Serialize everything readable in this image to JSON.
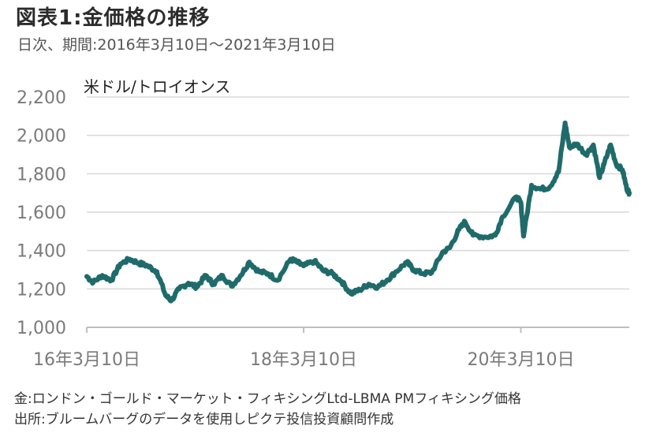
{
  "title": "図表1:金価格の推移",
  "subtitle": "日次、期間:2016年3月10日～2021年3月10日",
  "unit_label": "米ドル/トロイオンス",
  "notes": [
    "金:ロンドン・ゴールド・マーケット・フィキシングLtd-LBMA PMフィキシング価格",
    "出所:ブルームバーグのデータを使用しピクテ投信投資顧問作成"
  ],
  "colors": {
    "line": "#1f6b6b",
    "grid": "#d9d9d9",
    "axis": "#bfbfbf"
  },
  "chart_data": {
    "type": "line",
    "ylim": [
      1000,
      2200
    ],
    "yticks": [
      1000,
      1200,
      1400,
      1600,
      1800,
      2000,
      2200
    ],
    "ytick_labels": [
      "1,000",
      "1,200",
      "1,400",
      "1,600",
      "1,800",
      "2,000",
      "2,200"
    ],
    "xlim": [
      "2016-03-10",
      "2021-03-10"
    ],
    "xticks": [
      "2016-03-10",
      "2018-03-10",
      "2020-03-10"
    ],
    "xtick_labels": [
      "16年3月10日",
      "18年3月10日",
      "20年3月10日"
    ],
    "grid": true,
    "series": [
      {
        "values": [
          [
            "2016-03-10",
            1265
          ],
          [
            "2016-04-01",
            1235
          ],
          [
            "2016-05-01",
            1270
          ],
          [
            "2016-06-01",
            1245
          ],
          [
            "2016-07-01",
            1330
          ],
          [
            "2016-08-01",
            1355
          ],
          [
            "2016-09-01",
            1335
          ],
          [
            "2016-10-01",
            1320
          ],
          [
            "2016-11-01",
            1290
          ],
          [
            "2016-12-01",
            1165
          ],
          [
            "2016-12-20",
            1140
          ],
          [
            "2017-01-15",
            1200
          ],
          [
            "2017-02-15",
            1230
          ],
          [
            "2017-03-15",
            1210
          ],
          [
            "2017-04-15",
            1270
          ],
          [
            "2017-05-10",
            1225
          ],
          [
            "2017-06-10",
            1270
          ],
          [
            "2017-07-10",
            1215
          ],
          [
            "2017-08-10",
            1270
          ],
          [
            "2017-09-08",
            1340
          ],
          [
            "2017-10-10",
            1290
          ],
          [
            "2017-11-10",
            1280
          ],
          [
            "2017-12-12",
            1245
          ],
          [
            "2018-01-25",
            1355
          ],
          [
            "2018-02-15",
            1340
          ],
          [
            "2018-03-10",
            1320
          ],
          [
            "2018-04-15",
            1345
          ],
          [
            "2018-05-15",
            1295
          ],
          [
            "2018-06-15",
            1280
          ],
          [
            "2018-07-15",
            1240
          ],
          [
            "2018-08-16",
            1175
          ],
          [
            "2018-09-15",
            1195
          ],
          [
            "2018-10-15",
            1225
          ],
          [
            "2018-11-15",
            1210
          ],
          [
            "2018-12-15",
            1245
          ],
          [
            "2019-01-15",
            1290
          ],
          [
            "2019-02-20",
            1340
          ],
          [
            "2019-03-15",
            1300
          ],
          [
            "2019-04-15",
            1280
          ],
          [
            "2019-05-15",
            1285
          ],
          [
            "2019-06-20",
            1390
          ],
          [
            "2019-07-15",
            1415
          ],
          [
            "2019-08-15",
            1510
          ],
          [
            "2019-09-04",
            1550
          ],
          [
            "2019-10-01",
            1480
          ],
          [
            "2019-11-15",
            1470
          ],
          [
            "2019-12-15",
            1480
          ],
          [
            "2020-01-08",
            1575
          ],
          [
            "2020-02-24",
            1680
          ],
          [
            "2020-03-10",
            1650
          ],
          [
            "2020-03-19",
            1475
          ],
          [
            "2020-04-15",
            1740
          ],
          [
            "2020-05-15",
            1720
          ],
          [
            "2020-06-15",
            1730
          ],
          [
            "2020-07-15",
            1810
          ],
          [
            "2020-08-06",
            2065
          ],
          [
            "2020-08-20",
            1940
          ],
          [
            "2020-09-15",
            1955
          ],
          [
            "2020-10-15",
            1900
          ],
          [
            "2020-11-09",
            1950
          ],
          [
            "2020-11-30",
            1780
          ],
          [
            "2020-12-15",
            1850
          ],
          [
            "2021-01-06",
            1950
          ],
          [
            "2021-01-25",
            1850
          ],
          [
            "2021-02-15",
            1820
          ],
          [
            "2021-03-01",
            1725
          ],
          [
            "2021-03-10",
            1700
          ]
        ]
      }
    ]
  }
}
